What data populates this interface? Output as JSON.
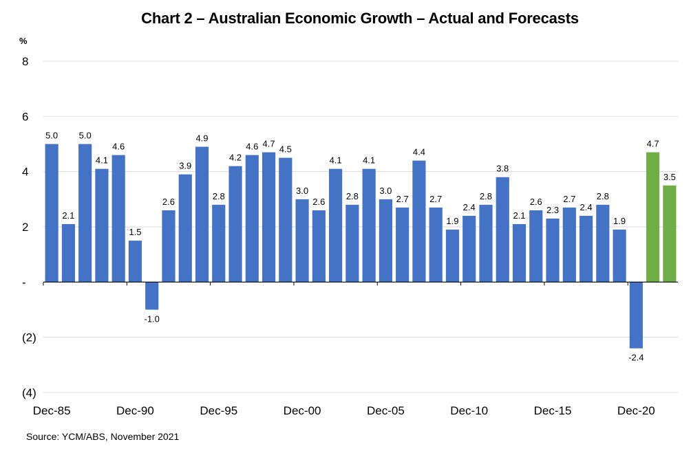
{
  "chart_data": {
    "type": "bar",
    "title": "Chart 2 – Australian Economic Growth – Actual and Forecasts",
    "source": "Source: YCM/ABS, November 2021",
    "y_unit": "%",
    "ylim": [
      -4,
      8
    ],
    "y_ticks": [
      {
        "value": 8,
        "label": "8"
      },
      {
        "value": 6,
        "label": "6"
      },
      {
        "value": 4,
        "label": "4"
      },
      {
        "value": 2,
        "label": "2"
      },
      {
        "value": 0,
        "label": "-"
      },
      {
        "value": -2,
        "label": "(2)"
      },
      {
        "value": -4,
        "label": "(4)"
      }
    ],
    "grid": true,
    "x_tick_labels": [
      {
        "index": 0,
        "label": "Dec-85"
      },
      {
        "index": 5,
        "label": "Dec-90"
      },
      {
        "index": 10,
        "label": "Dec-95"
      },
      {
        "index": 15,
        "label": "Dec-00"
      },
      {
        "index": 20,
        "label": "Dec-05"
      },
      {
        "index": 25,
        "label": "Dec-10"
      },
      {
        "index": 30,
        "label": "Dec-15"
      },
      {
        "index": 35,
        "label": "Dec-20"
      }
    ],
    "series": [
      {
        "color": "#4472c4",
        "values": [
          5.0,
          2.1,
          5.0,
          4.1,
          4.6,
          1.5,
          -1.0,
          2.6,
          3.9,
          4.9,
          2.8,
          4.2,
          4.6,
          4.7,
          4.5,
          3.0,
          2.6,
          4.1,
          2.8,
          4.1,
          3.0,
          2.7,
          4.4,
          2.7,
          1.9,
          2.4,
          2.8,
          3.8,
          2.1,
          2.6,
          2.3,
          2.7,
          2.4,
          2.8,
          1.9,
          -2.4
        ]
      },
      {
        "color": "#70ad47",
        "start_index": 36,
        "values": [
          4.7,
          3.5
        ]
      }
    ]
  }
}
